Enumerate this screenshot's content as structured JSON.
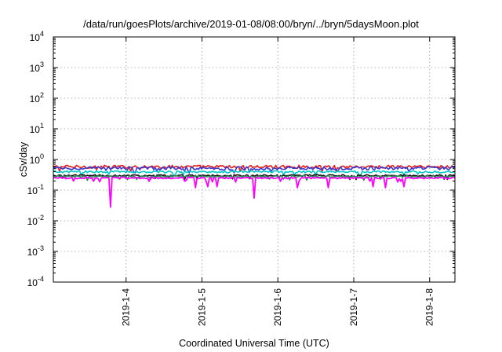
{
  "chart_data": {
    "type": "line",
    "title": "/data/run/goesPlots/archive/2019-01-08/08:00/bryn/../bryn/5daysMoon.plot",
    "xlabel": "Coordinated Universal Time (UTC)",
    "ylabel": "cSv/day",
    "yscale": "log",
    "ylim": [
      0.0001,
      10000
    ],
    "xlim": [
      "2019-01-03T01:00",
      "2019-01-08T08:00"
    ],
    "y_ticks": [
      {
        "base": "10",
        "exp": "-4"
      },
      {
        "base": "10",
        "exp": "-3"
      },
      {
        "base": "10",
        "exp": "-2"
      },
      {
        "base": "10",
        "exp": "-1"
      },
      {
        "base": "10",
        "exp": "0"
      },
      {
        "base": "10",
        "exp": "1"
      },
      {
        "base": "10",
        "exp": "2"
      },
      {
        "base": "10",
        "exp": "3"
      },
      {
        "base": "10",
        "exp": "4"
      }
    ],
    "x_ticks": [
      "2019-1-4",
      "2019-1-5",
      "2019-1-6",
      "2019-1-7",
      "2019-1-8"
    ],
    "grid": true,
    "legend": "none",
    "series": [
      {
        "color": "#e41a1c",
        "level": 0.58,
        "spread": 0.12,
        "dips": []
      },
      {
        "color": "#3a3ad0",
        "level": 0.52,
        "spread": 0.12,
        "dips": []
      },
      {
        "color": "#00c8c8",
        "level": 0.4,
        "spread": 0.08,
        "dips": []
      },
      {
        "color": "#111111",
        "level": 0.3,
        "spread": 0.07,
        "dips": []
      },
      {
        "color": "#2e8b57",
        "level": 0.28,
        "spread": 0.06,
        "dips": []
      },
      {
        "color": "#ff00ff",
        "level": 0.25,
        "spread": 0.06,
        "dips": [
          {
            "t": "2019-01-03T19:00",
            "v": 0.028
          },
          {
            "t": "2019-01-04T22:00",
            "v": 0.12
          },
          {
            "t": "2019-01-05T02:00",
            "v": 0.13
          },
          {
            "t": "2019-01-05T05:00",
            "v": 0.13
          },
          {
            "t": "2019-01-05T16:30",
            "v": 0.055
          },
          {
            "t": "2019-01-06T06:00",
            "v": 0.12
          },
          {
            "t": "2019-01-06T16:00",
            "v": 0.12
          },
          {
            "t": "2019-01-07T06:00",
            "v": 0.13
          },
          {
            "t": "2019-01-07T10:00",
            "v": 0.12
          },
          {
            "t": "2019-01-07T16:00",
            "v": 0.13
          }
        ]
      }
    ]
  }
}
